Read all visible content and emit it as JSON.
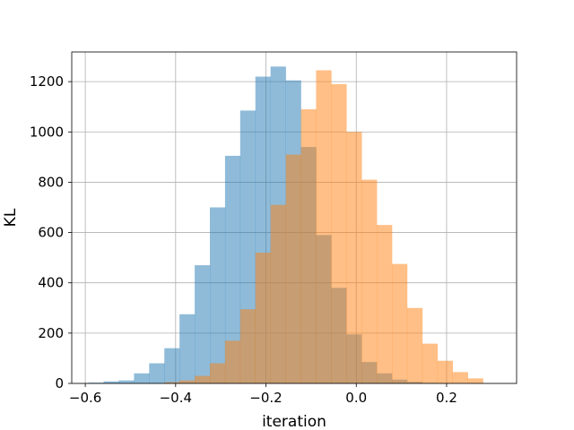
{
  "chart_data": {
    "type": "histogram",
    "title": "",
    "xlabel": "iteration",
    "ylabel": "KL",
    "xlim": [
      -0.63,
      0.355
    ],
    "ylim": [
      0,
      1318
    ],
    "grid": true,
    "bin_width": 0.0336,
    "x_ticks": [
      -0.6,
      -0.4,
      -0.2,
      0.0,
      0.2
    ],
    "x_tick_labels": [
      "−0.6",
      "−0.4",
      "−0.2",
      "0.0",
      "0.2"
    ],
    "y_ticks": [
      0,
      200,
      400,
      600,
      800,
      1000,
      1200
    ],
    "y_tick_labels": [
      "0",
      "200",
      "400",
      "600",
      "800",
      "1000",
      "1200"
    ],
    "series": [
      {
        "color": "#1f77b4",
        "opacity": 0.5,
        "bin_start": -0.593,
        "values": [
          3,
          8,
          12,
          40,
          80,
          140,
          275,
          470,
          700,
          905,
          1085,
          1220,
          1260,
          1205,
          940,
          590,
          380,
          195,
          85,
          40,
          15,
          6,
          2
        ]
      },
      {
        "color": "#ff7f0e",
        "opacity": 0.5,
        "bin_start": -0.425,
        "values": [
          5,
          12,
          30,
          80,
          170,
          295,
          520,
          710,
          910,
          1090,
          1245,
          1190,
          1000,
          810,
          630,
          475,
          300,
          158,
          90,
          45,
          20
        ]
      }
    ]
  }
}
